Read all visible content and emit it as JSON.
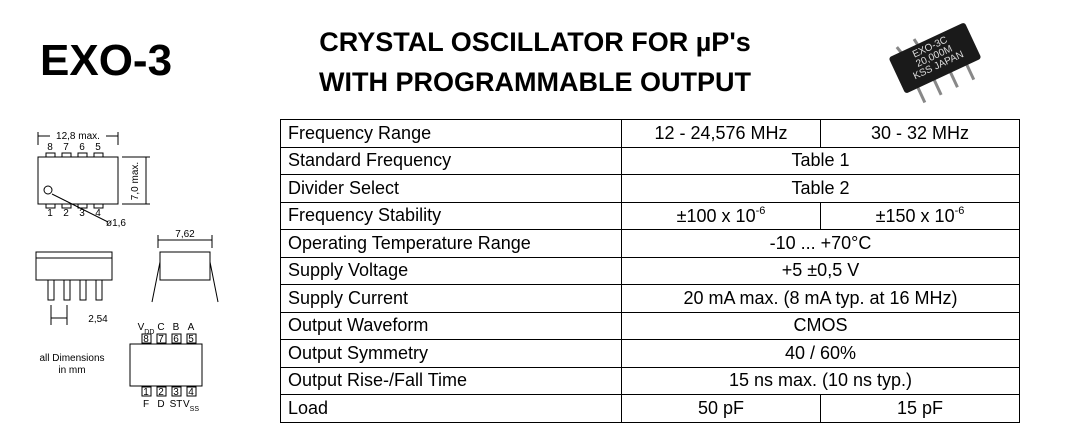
{
  "header": {
    "part": "EXO-3",
    "title": [
      "CRYSTAL OSCILLATOR FOR µP's",
      "WITH PROGRAMMABLE OUTPUT"
    ]
  },
  "chip_marking": [
    "EXO-3C",
    "20,000M",
    "KSS JAPAN"
  ],
  "diagram": {
    "width": "12,8 max.",
    "top_pins": [
      "8",
      "7",
      "6",
      "5"
    ],
    "height": "7,0 max.",
    "bottom_pins": [
      "1",
      "2",
      "3",
      "4"
    ],
    "hole": "ø1,6",
    "row_spacing": "7,62",
    "pitch": "2,54",
    "note": [
      "all Dimensions",
      "in mm"
    ],
    "pinout": {
      "top_labels": [
        {
          "base": "V",
          "sub": "DD"
        },
        "C",
        "B",
        "A"
      ],
      "top_numbers": [
        "8",
        "7",
        "6",
        "5"
      ],
      "bottom_numbers": [
        "1",
        "2",
        "3",
        "4"
      ],
      "bottom_labels": [
        "F",
        "D",
        "ST",
        {
          "base": "V",
          "sub": "SS"
        }
      ]
    }
  },
  "table": {
    "rows": [
      {
        "label": "Frequency Range",
        "cells": [
          "12 - 24,576 MHz",
          "30 - 32 MHz"
        ]
      },
      {
        "label": "Standard Frequency",
        "cells": [
          "Table 1"
        ]
      },
      {
        "label": "Divider Select",
        "cells": [
          "Table 2"
        ]
      },
      {
        "label": "Frequency Stability",
        "cells": [
          {
            "base": "±100 x 10",
            "exp": "-6"
          },
          {
            "base": "±150 x 10",
            "exp": "-6"
          }
        ]
      },
      {
        "label": "Operating Temperature Range",
        "cells": [
          "-10 ... +70°C"
        ]
      },
      {
        "label": "Supply Voltage",
        "cells": [
          "+5 ±0,5 V"
        ]
      },
      {
        "label": "Supply Current",
        "cells": [
          "20 mA max. (8 mA typ. at 16 MHz)"
        ]
      },
      {
        "label": "Output Waveform",
        "cells": [
          "CMOS"
        ]
      },
      {
        "label": "Output Symmetry",
        "cells": [
          "40 / 60%"
        ]
      },
      {
        "label": "Output Rise-/Fall Time",
        "cells": [
          "15 ns max. (10 ns typ.)"
        ]
      },
      {
        "label": "Load",
        "cells": [
          "50 pF",
          "15 pF"
        ]
      }
    ]
  }
}
